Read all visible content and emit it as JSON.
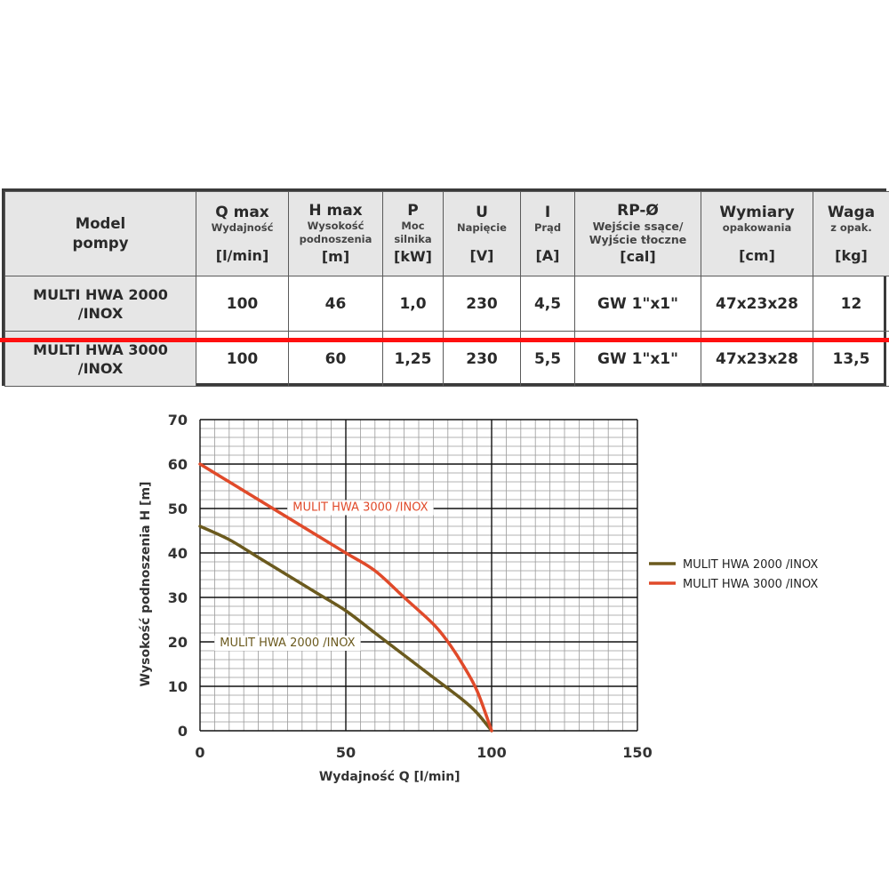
{
  "table": {
    "headers": [
      {
        "title": "Model pompy",
        "sub": "",
        "unit": ""
      },
      {
        "title": "Q max",
        "sub": "Wydajność",
        "unit": "[l/min]"
      },
      {
        "title": "H max",
        "sub": "Wysokość podnoszenia",
        "unit": "[m]"
      },
      {
        "title": "P",
        "sub": "Moc silnika",
        "unit": "[kW]"
      },
      {
        "title": "U",
        "sub": "Napięcie",
        "unit": "[V]"
      },
      {
        "title": "I",
        "sub": "Prąd",
        "unit": "[A]"
      },
      {
        "title": "RP-Ø",
        "sub": "Wejście ssące/ Wyjście tłoczne",
        "unit": "[cal]"
      },
      {
        "title": "Wymiary",
        "sub": "opakowania",
        "unit": "[cm]"
      },
      {
        "title": "Waga",
        "sub": "z opak.",
        "unit": "[kg]"
      }
    ],
    "header_model_line1": "Model",
    "header_model_line2": "pompy",
    "rows": [
      {
        "model_line1": "MULTI HWA 2000",
        "model_line2": "/INOX",
        "qmax": "100",
        "hmax": "46",
        "p": "1,0",
        "u": "230",
        "i": "4,5",
        "rp": "GW 1\"x1\"",
        "dims": "47x23x28",
        "weight": "12"
      },
      {
        "model_line1": "MULTI HWA 3000",
        "model_line2": "/INOX",
        "qmax": "100",
        "hmax": "60",
        "p": "1,25",
        "u": "230",
        "i": "5,5",
        "rp": "GW 1\"x1\"",
        "dims": "47x23x28",
        "weight": "13,5"
      }
    ],
    "highlight_color": "#ff1010"
  },
  "chart_data": {
    "type": "line",
    "title": "",
    "xlabel": "Wydajność Q [l/min]",
    "ylabel": "Wysokość podnoszenia H [m]",
    "xlim": [
      0,
      150
    ],
    "ylim": [
      0,
      70
    ],
    "xticks": [
      0,
      50,
      100,
      150
    ],
    "yticks": [
      0,
      10,
      20,
      30,
      40,
      50,
      60,
      70
    ],
    "grid": true,
    "legend_position": "right",
    "series": [
      {
        "name": "MULIT HWA 2000 /INOX",
        "color": "#6b5a1e",
        "x": [
          0,
          10,
          20,
          30,
          40,
          50,
          60,
          70,
          80,
          90,
          95,
          100
        ],
        "y": [
          46,
          43,
          39,
          35,
          31,
          27,
          22,
          17,
          12,
          7,
          4,
          0
        ]
      },
      {
        "name": "MULIT HWA 3000 /INOX",
        "color": "#e04a2a",
        "x": [
          0,
          10,
          20,
          30,
          40,
          50,
          60,
          70,
          80,
          85,
          90,
          95,
          100
        ],
        "y": [
          60,
          56,
          52,
          48,
          44,
          40,
          36,
          30,
          24,
          20,
          15,
          9,
          0
        ]
      }
    ],
    "annotations": [
      {
        "text": "MULIT HWA 3000 /INOX",
        "color": "#e04a2a",
        "x": 55,
        "y": 50.5
      },
      {
        "text": "MULIT HWA 2000 /INOX",
        "color": "#6b5a1e",
        "x": 30,
        "y": 20
      }
    ]
  }
}
